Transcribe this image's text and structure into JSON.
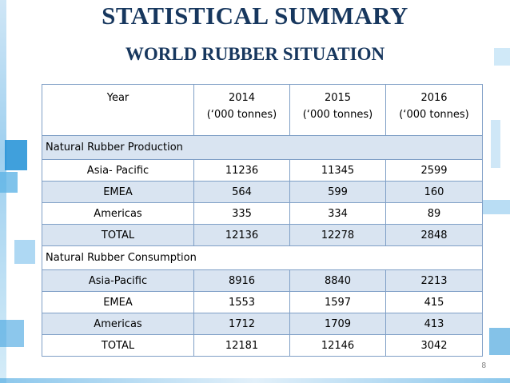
{
  "title": "STATISTICAL SUMMARY",
  "subtitle": "WORLD RUBBER SITUATION",
  "table": {
    "header": {
      "year_label": "Year",
      "columns": [
        {
          "year": "2014",
          "unit": "(‘000  tonnes)"
        },
        {
          "year": "2015",
          "unit": "(‘000  tonnes)"
        },
        {
          "year": "2016",
          "unit": "(‘000  tonnes)"
        }
      ]
    },
    "production": {
      "label": "Natural Rubber Production",
      "rows": [
        {
          "region": "Asia- Pacific",
          "v": [
            "11236",
            "11345",
            "2599"
          ]
        },
        {
          "region": "EMEA",
          "v": [
            "564",
            "599",
            "160"
          ]
        },
        {
          "region": "Americas",
          "v": [
            "335",
            "334",
            "89"
          ]
        },
        {
          "region": "TOTAL",
          "v": [
            "12136",
            "12278",
            "2848"
          ]
        }
      ]
    },
    "consumption": {
      "label": "Natural Rubber Consumption",
      "rows": [
        {
          "region": "Asia-Pacific",
          "v": [
            "8916",
            "8840",
            "2213"
          ]
        },
        {
          "region": "EMEA",
          "v": [
            "1553",
            "1597",
            "415"
          ]
        },
        {
          "region": "Americas",
          "v": [
            "1712",
            "1709",
            "413"
          ]
        },
        {
          "region": "TOTAL",
          "v": [
            "12181",
            "12146",
            "3042"
          ]
        }
      ]
    }
  },
  "page_number": "8"
}
